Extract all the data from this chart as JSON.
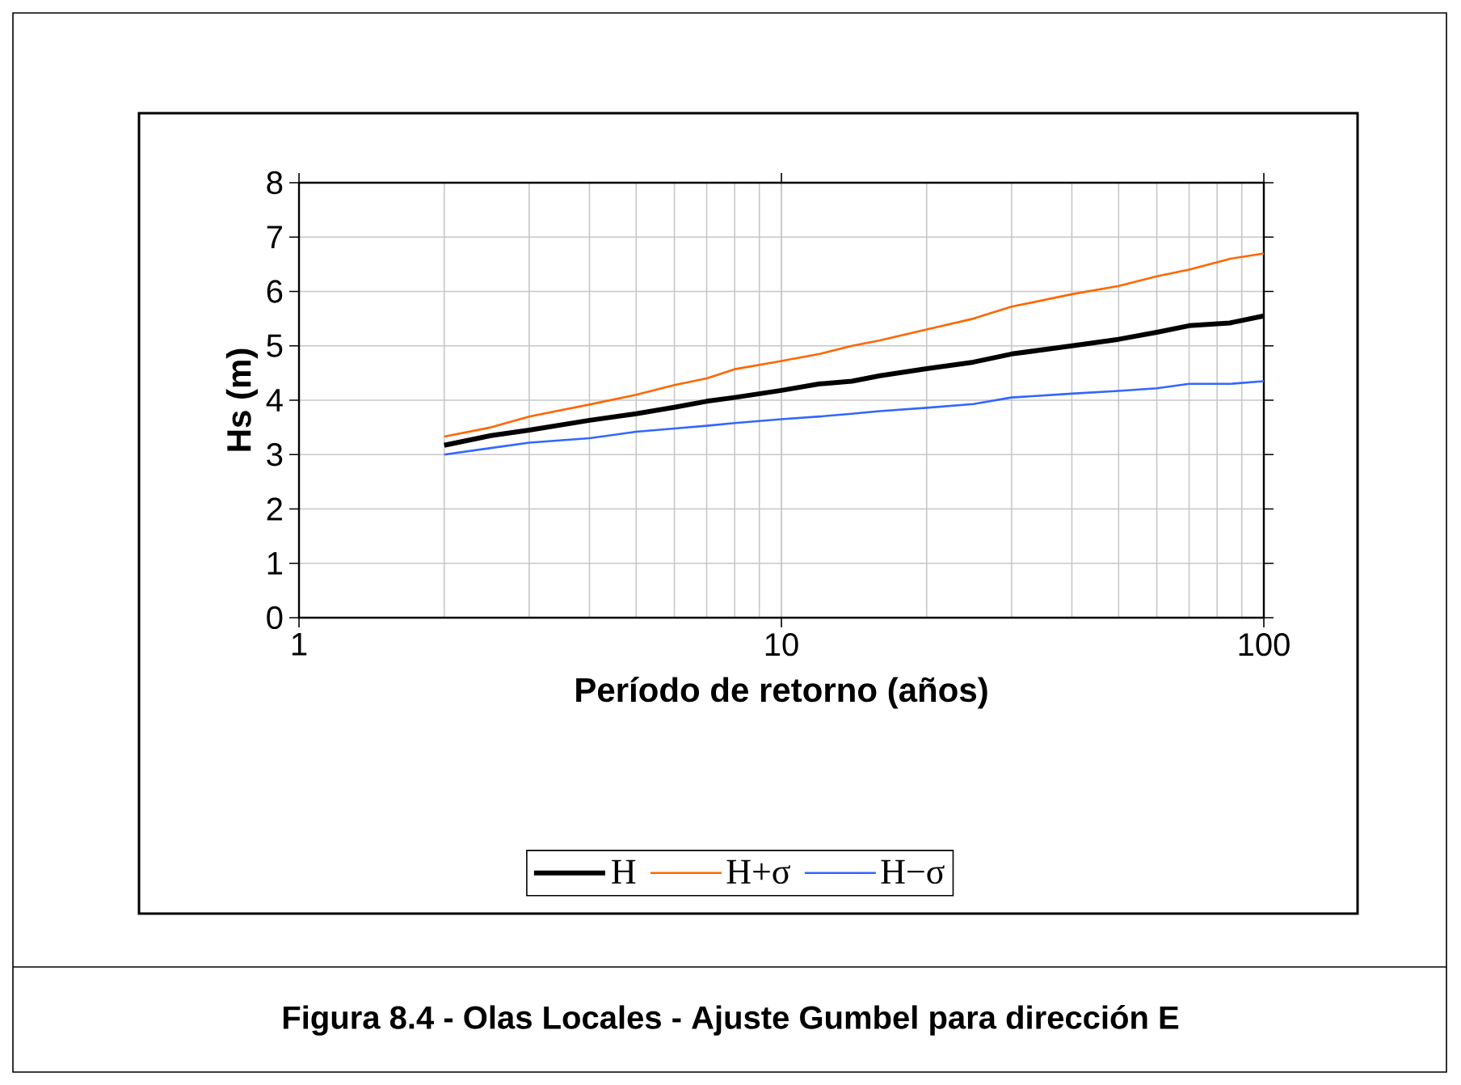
{
  "chart_data": {
    "type": "line",
    "title": "Figura 8.4 - Olas Locales - Ajuste Gumbel para dirección E",
    "xlabel": "Período de retorno (años)",
    "ylabel": "Hs (m)",
    "x": [
      2,
      2.5,
      3,
      4,
      5,
      6,
      7,
      8,
      10,
      12,
      14,
      16,
      20,
      25,
      30,
      40,
      50,
      60,
      70,
      85,
      100
    ],
    "series": [
      {
        "name": "H",
        "color": "#000000",
        "values": [
          3.17,
          3.35,
          3.45,
          3.63,
          3.75,
          3.87,
          3.98,
          4.05,
          4.18,
          4.3,
          4.35,
          4.45,
          4.58,
          4.7,
          4.85,
          5.0,
          5.12,
          5.25,
          5.37,
          5.42,
          5.55
        ]
      },
      {
        "name": "H+σ",
        "color": "#ff6600",
        "values": [
          3.33,
          3.5,
          3.7,
          3.92,
          4.1,
          4.28,
          4.4,
          4.57,
          4.72,
          4.85,
          5.0,
          5.1,
          5.3,
          5.5,
          5.72,
          5.95,
          6.1,
          6.28,
          6.4,
          6.6,
          6.7
        ]
      },
      {
        "name": "H−σ",
        "color": "#3366ff",
        "values": [
          3.0,
          3.12,
          3.22,
          3.3,
          3.42,
          3.48,
          3.53,
          3.58,
          3.65,
          3.7,
          3.75,
          3.8,
          3.86,
          3.93,
          4.05,
          4.12,
          4.17,
          4.22,
          4.3,
          4.3,
          4.35
        ]
      }
    ],
    "xlim": [
      1,
      100
    ],
    "xticks": [
      1,
      10,
      100
    ],
    "ylim": [
      0,
      8
    ],
    "yticks": [
      0,
      1,
      2,
      3,
      4,
      5,
      6,
      7,
      8
    ],
    "log": "x",
    "grid": true,
    "legend": "bottom",
    "marker": "none",
    "line_style": "solid"
  }
}
